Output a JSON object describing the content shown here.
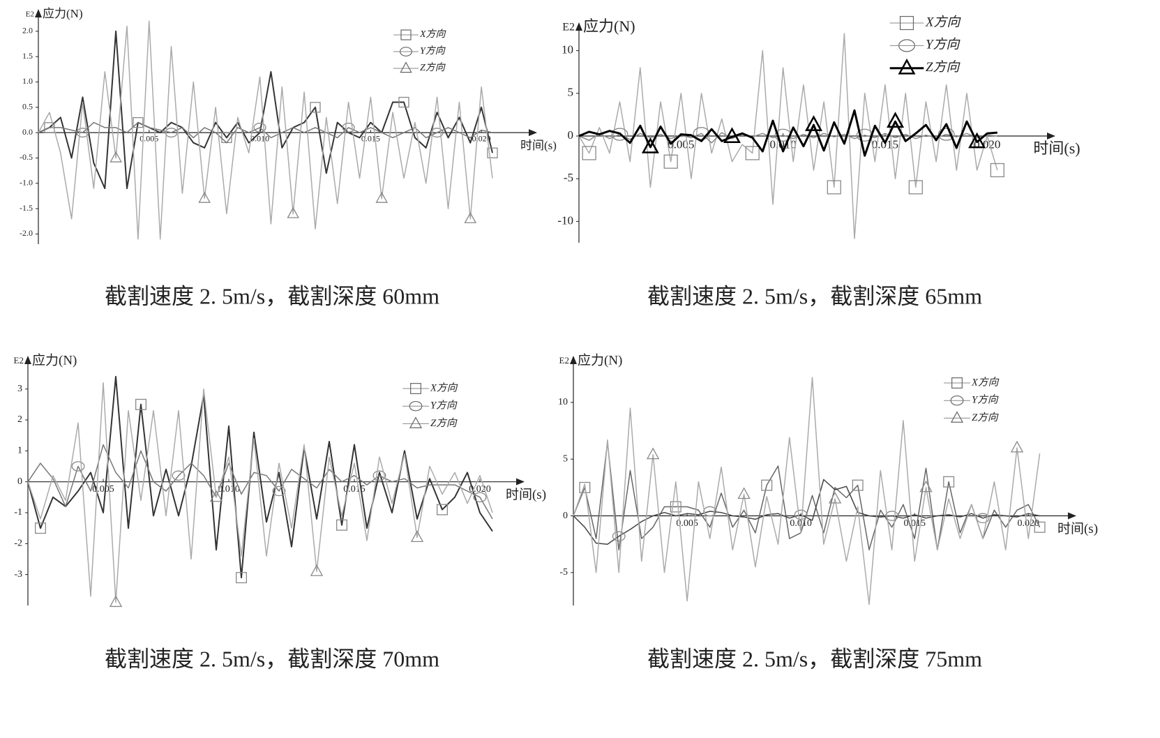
{
  "chart_data": [
    {
      "type": "line",
      "scale_label": "E2",
      "ylabel": "应力(N)",
      "xlabel": "时间(s)",
      "caption": "截割速度 2. 5m/s，截割深度 60mm",
      "xlim": [
        0,
        0.0222
      ],
      "ylim": [
        -2.2,
        2.3
      ],
      "xticks": [
        0.005,
        {
          "value": 0.01,
          "label": "0.010"
        },
        0.015,
        {
          "value": 0.02,
          "label": "0.020"
        }
      ],
      "yticks": [
        {
          "value": 2,
          "label": "2.0"
        },
        1.5,
        {
          "value": 1,
          "label": "1.0"
        },
        0.5,
        {
          "value": 0,
          "label": "0.0"
        },
        -0.5,
        {
          "value": -1,
          "label": "-1.0"
        },
        -1.5,
        {
          "value": -2,
          "label": "-2.0"
        }
      ],
      "x": [
        0,
        0.0005,
        0.001,
        0.0015,
        0.002,
        0.0025,
        0.003,
        0.0035,
        0.004,
        0.0045,
        0.005,
        0.0055,
        0.006,
        0.0065,
        0.007,
        0.0075,
        0.008,
        0.0085,
        0.009,
        0.0095,
        0.01,
        0.0105,
        0.011,
        0.0115,
        0.012,
        0.0125,
        0.013,
        0.0135,
        0.014,
        0.0145,
        0.015,
        0.0155,
        0.016,
        0.0165,
        0.017,
        0.0175,
        0.018,
        0.0185,
        0.019,
        0.0195,
        0.02,
        0.0205
      ],
      "series": [
        {
          "name": "X方向",
          "color": "#333333",
          "marker": "square",
          "line_width": 2,
          "values": [
            0,
            0.1,
            0.3,
            -0.5,
            0.7,
            -0.6,
            -1.1,
            2.0,
            -1.1,
            0.2,
            0.1,
            0.0,
            0.2,
            0.1,
            -0.2,
            -0.3,
            0.2,
            -0.1,
            0.2,
            -0.2,
            0.0,
            1.2,
            -0.3,
            0.1,
            0.2,
            0.5,
            -0.8,
            0.2,
            0.0,
            -0.1,
            0.2,
            0.0,
            0.6,
            0.6,
            -0.1,
            -0.3,
            0.4,
            -0.1,
            0.3,
            -0.2,
            0.5,
            -0.4
          ]
        },
        {
          "name": "Y方向",
          "color": "#777777",
          "marker": "circle",
          "line_width": 1.5,
          "values": [
            0,
            0.1,
            0.1,
            0.05,
            0,
            0.2,
            0.1,
            0.1,
            0,
            0.2,
            0.1,
            0.05,
            0,
            0.1,
            -0.1,
            0.1,
            0,
            -0.2,
            0.1,
            0,
            0.1,
            -0.1,
            0,
            0.1,
            0,
            0.1,
            0,
            -0.1,
            0.1,
            0,
            0.1,
            0,
            -0.1,
            0,
            0.1,
            -0.1,
            0,
            0.1,
            0,
            -0.1,
            0.05,
            0
          ]
        },
        {
          "name": "Z方向",
          "color": "#aaaaaa",
          "marker": "triangle",
          "line_width": 1.5,
          "values": [
            0,
            0.4,
            -0.4,
            -1.7,
            0.6,
            -1.1,
            1.2,
            -0.5,
            2.1,
            -2.1,
            2.2,
            -2.1,
            1.7,
            -1.2,
            1.0,
            -1.3,
            0.5,
            -1.6,
            0.3,
            -0.4,
            1.1,
            -1.8,
            0.9,
            -1.6,
            0.8,
            -1.9,
            0.3,
            -1.4,
            0.6,
            -0.9,
            0.7,
            -1.3,
            0.4,
            -0.9,
            0.2,
            -1.0,
            0.7,
            -1.5,
            0.6,
            -1.7,
            0.9,
            -0.9
          ]
        }
      ]
    },
    {
      "type": "line",
      "scale_label": "E2",
      "ylabel": "应力(N)",
      "xlabel": "时间(s)",
      "caption": "截割速度 2. 5m/s，截割深度 65mm",
      "xlim": [
        0,
        0.023
      ],
      "ylim": [
        -12.5,
        12.5
      ],
      "xticks": [
        0.005,
        {
          "value": 0.01,
          "label": "0.010"
        },
        0.015,
        {
          "value": 0.02,
          "label": "0.020"
        }
      ],
      "yticks": [
        10,
        5,
        0,
        -5,
        -10
      ],
      "x": [
        0,
        0.0005,
        0.001,
        0.0015,
        0.002,
        0.0025,
        0.003,
        0.0035,
        0.004,
        0.0045,
        0.005,
        0.0055,
        0.006,
        0.0065,
        0.007,
        0.0075,
        0.008,
        0.0085,
        0.009,
        0.0095,
        0.01,
        0.0105,
        0.011,
        0.0115,
        0.012,
        0.0125,
        0.013,
        0.0135,
        0.014,
        0.0145,
        0.015,
        0.0155,
        0.016,
        0.0165,
        0.017,
        0.0175,
        0.018,
        0.0185,
        0.019,
        0.0195,
        0.02,
        0.0205
      ],
      "series": [
        {
          "name": "X方向",
          "color": "#aaaaaa",
          "marker": "square",
          "line_width": 1.5,
          "values": [
            0,
            -2,
            1,
            -2,
            4,
            -3,
            8,
            -6,
            4,
            -3,
            5,
            -5,
            5,
            -2,
            2,
            -3,
            -1,
            -2,
            10,
            -8,
            8,
            -3,
            6,
            -4,
            4,
            -6,
            12,
            -12,
            5,
            -3,
            6,
            -5,
            5,
            -6,
            4,
            -3,
            6,
            -4,
            5,
            -4,
            0,
            -4
          ]
        },
        {
          "name": "Y方向",
          "color": "#888888",
          "marker": "circle",
          "line_width": 1.5,
          "values": [
            0,
            -0.5,
            0.3,
            -0.3,
            0.2,
            -0.4,
            0.3,
            -0.2,
            0.2,
            -0.3,
            0.1,
            -0.2,
            0.3,
            -0.8,
            0.4,
            -0.3,
            0.2,
            -0.1,
            0.3,
            -0.2,
            0.1,
            -0.3,
            0.2,
            -0.2,
            0.3,
            -0.1,
            0.2,
            -0.3,
            0.1,
            -0.2,
            0.3,
            -0.2,
            0.2,
            -0.3,
            0.1,
            -0.2,
            0.2,
            -0.1,
            0.3,
            -0.2,
            0.1,
            0
          ]
        },
        {
          "name": "Z方向",
          "color": "#000000",
          "marker": "triangle",
          "line_width": 3,
          "values": [
            0,
            0.5,
            0.2,
            0.6,
            0.3,
            -0.8,
            1.2,
            -1.3,
            1.1,
            -0.9,
            0.2,
            0.1,
            -0.6,
            0.8,
            -0.6,
            -0.1,
            0.3,
            -0.2,
            -1.8,
            1.8,
            -1.8,
            1,
            -1.2,
            1.3,
            -1.7,
            1.6,
            -0.9,
            3,
            -2.3,
            1.2,
            -0.8,
            1.7,
            -0.6,
            0.3,
            1.3,
            -0.5,
            1.4,
            -1.4,
            1.7,
            -0.7,
            0.3,
            0.4
          ]
        }
      ]
    },
    {
      "type": "line",
      "scale_label": "E2",
      "ylabel": "应力(N)",
      "xlabel": "时间(s)",
      "caption": "截割速度 2. 5m/s，截割深度 70mm",
      "xlim": [
        0.002,
        0.0215
      ],
      "ylim": [
        -4,
        3.85
      ],
      "xticks": [
        0.005,
        {
          "value": 0.01,
          "label": "0.010"
        },
        0.015,
        {
          "value": 0.02,
          "label": "0.020"
        }
      ],
      "yticks": [
        3,
        2,
        1,
        0,
        -1,
        -2,
        -3
      ],
      "x": [
        0.002,
        0.0025,
        0.003,
        0.0035,
        0.004,
        0.0045,
        0.005,
        0.0055,
        0.006,
        0.0065,
        0.007,
        0.0075,
        0.008,
        0.0085,
        0.009,
        0.0095,
        0.01,
        0.0105,
        0.011,
        0.0115,
        0.012,
        0.0125,
        0.013,
        0.0135,
        0.014,
        0.0145,
        0.015,
        0.0155,
        0.016,
        0.0165,
        0.017,
        0.0175,
        0.018,
        0.0185,
        0.019,
        0.0195,
        0.02,
        0.0205
      ],
      "series": [
        {
          "name": "X方向",
          "color": "#333333",
          "marker": "square",
          "line_width": 2,
          "values": [
            0,
            -1.5,
            -0.5,
            -0.8,
            -0.3,
            0.3,
            -1,
            3.4,
            -1.5,
            2.5,
            -1.1,
            0.4,
            -1.1,
            0.5,
            2.8,
            -2.2,
            1.8,
            -3.1,
            1.6,
            -1.3,
            0.3,
            -2.1,
            1.1,
            -1.2,
            1.3,
            -1.4,
            1.2,
            -1.5,
            0.3,
            -1.0,
            1.0,
            -1.2,
            0.1,
            -0.9,
            -0.5,
            0.3,
            -1.0,
            -1.6
          ]
        },
        {
          "name": "Y方向",
          "color": "#777777",
          "marker": "circle",
          "line_width": 1.5,
          "values": [
            0,
            0.6,
            0.1,
            -0.8,
            0.5,
            -0.3,
            1.2,
            0.3,
            -0.2,
            1.0,
            0,
            -0.3,
            0.2,
            0.6,
            0.2,
            -0.5,
            0.6,
            -0.4,
            0.3,
            0.2,
            -0.3,
            0.4,
            0.1,
            -0.2,
            0.4,
            0,
            0.2,
            -0.1,
            0.2,
            0,
            0.1,
            -0.2,
            -0.1,
            -0.1,
            -0.1,
            -0.3,
            -0.5,
            -1.2
          ]
        },
        {
          "name": "Z方向",
          "color": "#aaaaaa",
          "marker": "triangle",
          "line_width": 1.5,
          "values": [
            0,
            -1.2,
            0.2,
            -0.6,
            1.9,
            -3.7,
            3.2,
            -3.9,
            2.3,
            -0.6,
            2.3,
            -1.1,
            2.3,
            -2.5,
            3.0,
            -0.5,
            0.8,
            -2.4,
            1.4,
            -2.4,
            0.6,
            -1.5,
            1.2,
            -2.9,
            0.8,
            -1.1,
            0.6,
            -1.9,
            0.8,
            -0.7,
            0.9,
            -1.8,
            0.5,
            -0.4,
            0.3,
            -0.7,
            0.2,
            -1.0
          ]
        }
      ]
    },
    {
      "type": "line",
      "scale_label": "E2",
      "ylabel": "应力(N)",
      "xlabel": "时间(s)",
      "caption": "截割速度 2. 5m/s，截割深度 75mm",
      "xlim": [
        0,
        0.0218
      ],
      "ylim": [
        -7.9,
        13.5
      ],
      "xticks": [
        0.005,
        {
          "value": 0.01,
          "label": "0.010"
        },
        0.015,
        {
          "value": 0.02,
          "label": "0.020"
        }
      ],
      "yticks": [
        10,
        5,
        0,
        -5
      ],
      "x": [
        0,
        0.0005,
        0.001,
        0.0015,
        0.002,
        0.0025,
        0.003,
        0.0035,
        0.004,
        0.0045,
        0.005,
        0.0055,
        0.006,
        0.0065,
        0.007,
        0.0075,
        0.008,
        0.0085,
        0.009,
        0.0095,
        0.01,
        0.0105,
        0.011,
        0.0115,
        0.012,
        0.0125,
        0.013,
        0.0135,
        0.014,
        0.0145,
        0.015,
        0.0155,
        0.016,
        0.0165,
        0.017,
        0.0175,
        0.018,
        0.0185,
        0.019,
        0.0195,
        0.02,
        0.0205
      ],
      "series": [
        {
          "name": "X方向",
          "color": "#666666",
          "marker": "square",
          "line_width": 1.5,
          "values": [
            0,
            2.5,
            -2,
            6.5,
            -3,
            4,
            -2,
            -1,
            0.8,
            0.8,
            0.8,
            0.5,
            -1,
            2,
            -1,
            0.5,
            -1.5,
            2.7,
            4.4,
            -2,
            -1.5,
            1.8,
            -1.5,
            2.5,
            1.6,
            2.7,
            -3,
            0.5,
            -1,
            1,
            -2,
            4.2,
            -3,
            3,
            -1.5,
            1,
            -2,
            0.5,
            -1,
            0.5,
            1,
            -1
          ]
        },
        {
          "name": "Y方向",
          "color": "#444444",
          "marker": "circle",
          "line_width": 1.5,
          "values": [
            0,
            -1,
            -2.4,
            -2.5,
            -1.8,
            -1.2,
            -0.5,
            0,
            0.3,
            0,
            0.2,
            0.1,
            0.4,
            0.3,
            0,
            -0.1,
            -0.3,
            0.1,
            0.2,
            -0.2,
            0.1,
            -0.4,
            3.2,
            2.3,
            2.6,
            0.3,
            0,
            -0.1,
            0,
            -0.2,
            0.1,
            -0.2,
            0,
            0.1,
            -0.1,
            0.2,
            -0.2,
            0.1,
            0,
            -0.1,
            0.2,
            0
          ]
        },
        {
          "name": "Z方向",
          "color": "#aaaaaa",
          "marker": "triangle",
          "line_width": 1.5,
          "values": [
            0,
            2.8,
            -5,
            6.7,
            -5,
            9.5,
            -4,
            5.4,
            -5,
            3,
            -7.5,
            3,
            -2,
            4.3,
            -3,
            1.9,
            -4.5,
            1.7,
            -2.5,
            6.9,
            -1.5,
            12.2,
            -2.5,
            1.5,
            -4,
            0.8,
            -7.8,
            4,
            -3,
            8.4,
            -4,
            2.5,
            -3,
            1.5,
            -2,
            1,
            -2,
            3,
            -3,
            6,
            -2,
            5.5
          ]
        }
      ]
    }
  ]
}
